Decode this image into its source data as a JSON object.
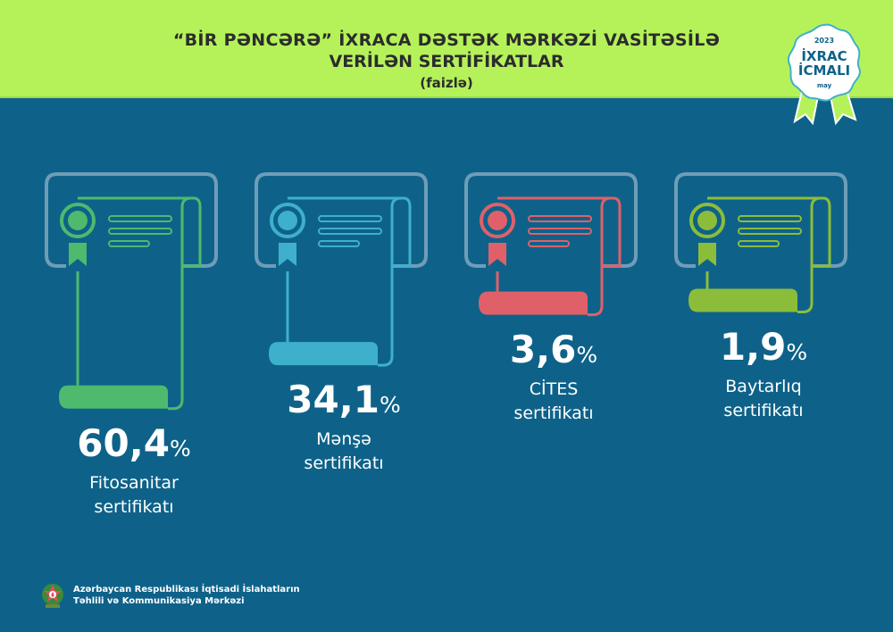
{
  "header": {
    "title_line1": "“BİR PƏNCƏRƏ” İXRACA DƏSTƏK MƏRKƏZİ VASİTƏSİLƏ",
    "title_line2": "VERİLƏN SERTİFİKATLAR",
    "subtitle": "(faizlə)",
    "background_color": "#b5f25a"
  },
  "badge": {
    "year": "2023",
    "line1": "İXRAC",
    "line2": "İCMALI",
    "month": "may"
  },
  "chart_data": {
    "type": "bar",
    "title": "“BİR PƏNCƏRƏ” İXRACA DƏSTƏK MƏRKƏZİ VASİTƏSİLƏ VERİLƏN SERTİFİKATLAR",
    "subtitle": "(faizlə)",
    "unit": "%",
    "categories": [
      "Fitosanitar sertifikatı",
      "Mənşə sertifikatı",
      "CİTES sertifikatı",
      "Baytarlıq sertifikatı"
    ],
    "values": [
      60.4,
      34.1,
      3.6,
      1.9
    ],
    "items": [
      {
        "value_text": "60,4",
        "label_line1": "Fitosanitar",
        "label_line2": "sertifikatı",
        "color": "#4dba6e"
      },
      {
        "value_text": "34,1",
        "label_line1": "Mənşə",
        "label_line2": "sertifikatı",
        "color": "#3fb0cc"
      },
      {
        "value_text": "3,6",
        "label_line1": "CİTES",
        "label_line2": "sertifikatı",
        "color": "#e0606a"
      },
      {
        "value_text": "1,9",
        "label_line1": "Baytarlıq",
        "label_line2": "sertifikatı",
        "color": "#8cbd3a"
      }
    ],
    "percent_sign": "%"
  },
  "footer": {
    "org_line1": "Azərbaycan Respublikası İqtisadi İslahatların",
    "org_line2": "Təhlili və Kommunikasiya Mərkəzi"
  }
}
